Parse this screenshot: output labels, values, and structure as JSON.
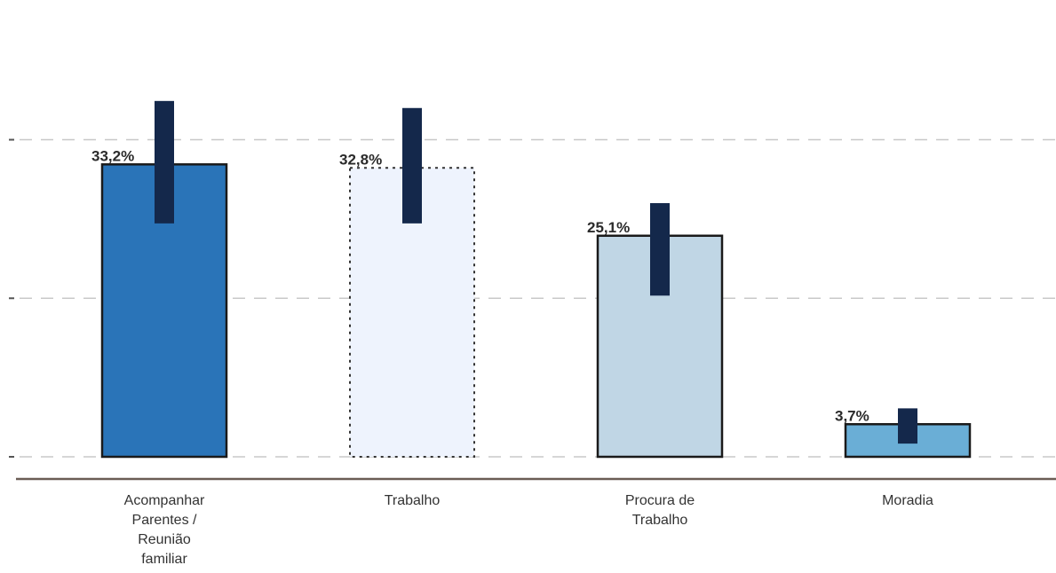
{
  "chart_data": {
    "type": "bar",
    "categories": [
      "Acompanhar Parentes / Reunião familiar",
      "Trabalho",
      "Procura de Trabalho",
      "Moradia"
    ],
    "category_lines": [
      [
        "Acompanhar",
        "Parentes /",
        "Reunião",
        "familiar"
      ],
      [
        "Trabalho"
      ],
      [
        "Procura de",
        "Trabalho"
      ],
      [
        "Moradia"
      ]
    ],
    "values": [
      33.2,
      32.8,
      25.1,
      3.7
    ],
    "value_labels": [
      "33,2%",
      "32,8%",
      "25,1%",
      "3,7%"
    ],
    "error_ranges": [
      [
        26.5,
        40.4
      ],
      [
        26.5,
        39.6
      ],
      [
        18.3,
        28.8
      ],
      [
        1.5,
        5.5
      ]
    ],
    "bar_colors": [
      "#2a74b8",
      "#eef3fd",
      "#c0d6e5",
      "#6aaed6"
    ],
    "error_bar_color": "#14284b",
    "ylim": [
      0,
      40
    ],
    "gridlines_at": [
      0,
      18,
      36
    ],
    "grid": true,
    "title": "",
    "xlabel": "",
    "ylabel": ""
  }
}
